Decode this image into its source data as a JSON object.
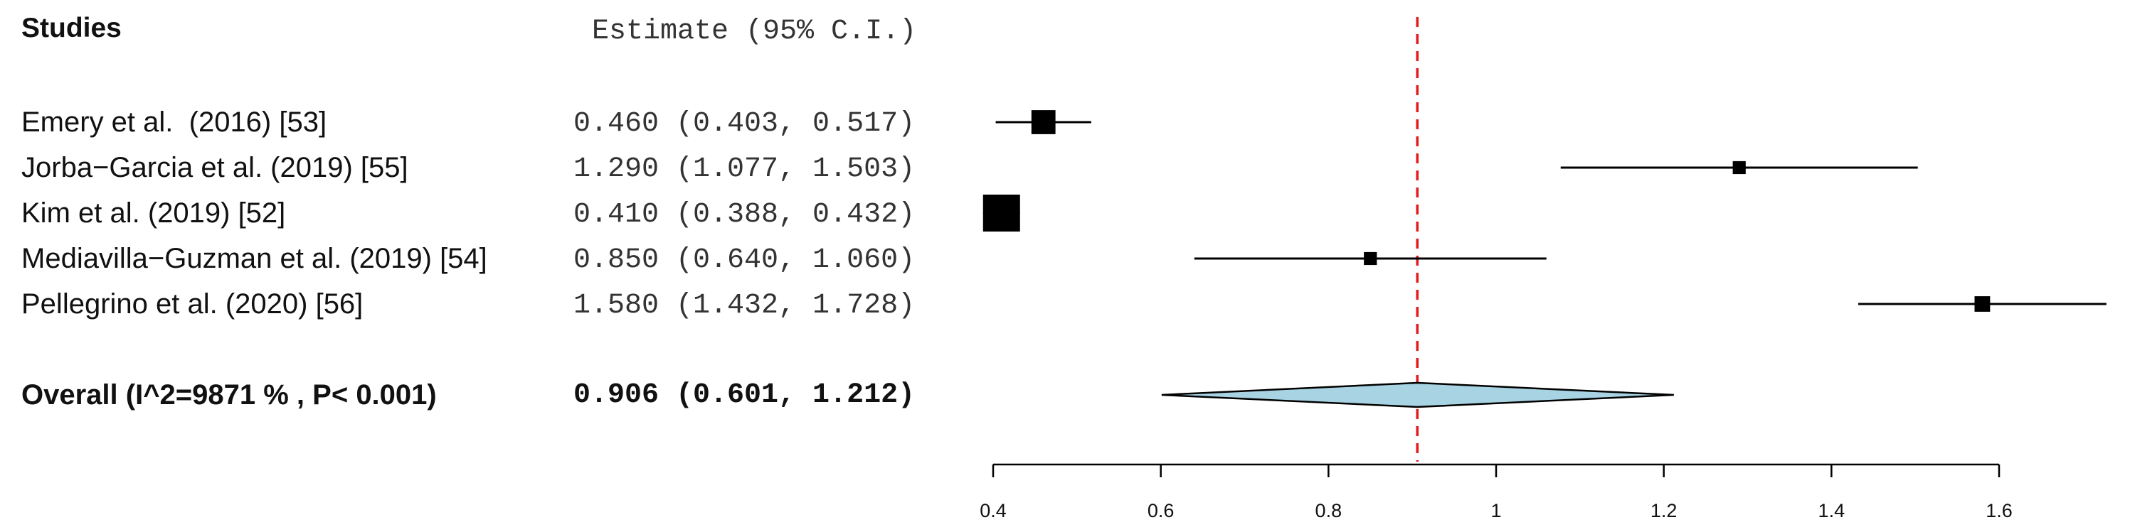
{
  "headers": {
    "studies": "Studies",
    "estimate": "Estimate (95% C.I.)"
  },
  "chart_data": {
    "type": "forest",
    "studies": [
      {
        "label": "Emery et al.  (2016) [53]",
        "estimate_text": "0.460 (0.403, 0.517)",
        "est": 0.46,
        "lo": 0.403,
        "hi": 0.517,
        "weight": 0.65
      },
      {
        "label": "Jorba−Garcia et al. (2019) [55]",
        "estimate_text": "1.290 (1.077, 1.503)",
        "est": 1.29,
        "lo": 1.077,
        "hi": 1.503,
        "weight": 0.35
      },
      {
        "label": "Kim et al. (2019) [52]",
        "estimate_text": "0.410 (0.388, 0.432)",
        "est": 0.41,
        "lo": 0.388,
        "hi": 0.432,
        "weight": 1.0
      },
      {
        "label": "Mediavilla−Guzman et al. (2019) [54]",
        "estimate_text": "0.850 (0.640, 1.060)",
        "est": 0.85,
        "lo": 0.64,
        "hi": 1.06,
        "weight": 0.35
      },
      {
        "label": "Pellegrino et al. (2020) [56]",
        "estimate_text": "1.580 (1.432, 1.728)",
        "est": 1.58,
        "lo": 1.432,
        "hi": 1.728,
        "weight": 0.42
      }
    ],
    "overall": {
      "label": "Overall (I^2=9871 % , P< 0.001)",
      "estimate_text": "0.906 (0.601, 1.212)",
      "est": 0.906,
      "lo": 0.601,
      "hi": 1.212
    },
    "xlim": [
      0.4,
      1.6
    ],
    "x_ticks": [
      "0.4",
      "0.6",
      "0.8",
      "1",
      "1.2",
      "1.4",
      "1.6"
    ],
    "tick_values": [
      0.4,
      0.6,
      0.8,
      1.0,
      1.2,
      1.4,
      1.6
    ],
    "reference_line": 0.906,
    "colors": {
      "reference": "#e41a1c",
      "diamond": "#a7d3e3",
      "marker": "#000000"
    }
  }
}
